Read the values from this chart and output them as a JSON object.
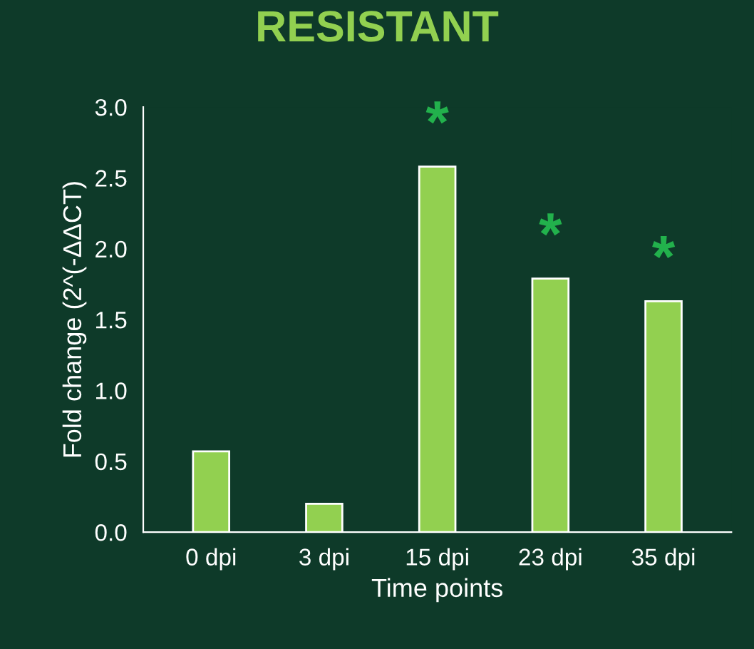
{
  "chart_data": {
    "type": "bar",
    "title": "RESISTANT",
    "xlabel": "Time points",
    "ylabel": "Fold change (2^(-ΔΔCT)",
    "categories": [
      "0 dpi",
      "3 dpi",
      "15 dpi",
      "23 dpi",
      "35 dpi"
    ],
    "values": [
      0.57,
      0.2,
      2.58,
      1.79,
      1.63
    ],
    "color": "#92d050",
    "ylim": [
      0,
      3.0
    ],
    "yticks": [
      {
        "value": 0,
        "label": "0.0"
      },
      {
        "value": 0.5,
        "label": "0.5"
      },
      {
        "value": 1.0,
        "label": "1.0"
      },
      {
        "value": 1.5,
        "label": "1.5"
      },
      {
        "value": 2.0,
        "label": "2.0"
      },
      {
        "value": 2.5,
        "label": "2.5"
      },
      {
        "value": 3.0,
        "label": "3.0"
      }
    ],
    "annotations": [
      {
        "text": "*",
        "x": "15 dpi",
        "y": 2.58
      },
      {
        "text": "*",
        "x": "23 dpi",
        "y": 1.79
      },
      {
        "text": "*",
        "x": "35 dpi",
        "y": 1.63
      }
    ],
    "grid": false,
    "legend": false
  }
}
